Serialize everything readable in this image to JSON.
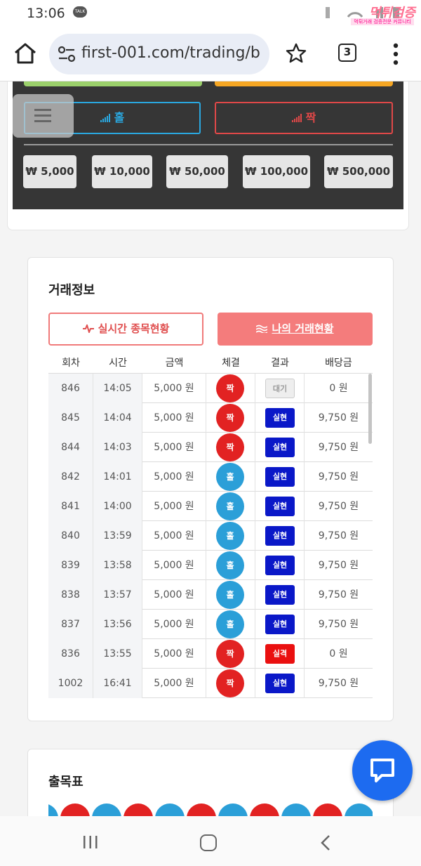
{
  "status_bar": {
    "time": "13:06",
    "talk_badge": "TALK",
    "watermark": "먹튀검증",
    "watermark_sub": "먹튀거래 검증전문 커뮤니티"
  },
  "browser": {
    "url": "first-001.com/trading/b",
    "tab_count": "3"
  },
  "bet_panel": {
    "odd_label": "홀",
    "even_label": "짝",
    "amounts": [
      "₩ 5,000",
      "₩ 10,000",
      "₩ 50,000",
      "₩ 100,000",
      "₩ 500,000"
    ]
  },
  "trade_info": {
    "title": "거래정보",
    "tab_live": "실시간 종목현황",
    "tab_mine": "나의 거래현황",
    "columns": [
      "회차",
      "시간",
      "금액",
      "체결",
      "결과",
      "배당금"
    ],
    "rows": [
      {
        "round": "846",
        "time": "14:05",
        "amount": "5,000 원",
        "pick": "짝",
        "result": "대기",
        "payout": "0 원"
      },
      {
        "round": "845",
        "time": "14:04",
        "amount": "5,000 원",
        "pick": "짝",
        "result": "실현",
        "payout": "9,750 원"
      },
      {
        "round": "844",
        "time": "14:03",
        "amount": "5,000 원",
        "pick": "짝",
        "result": "실현",
        "payout": "9,750 원"
      },
      {
        "round": "842",
        "time": "14:01",
        "amount": "5,000 원",
        "pick": "홀",
        "result": "실현",
        "payout": "9,750 원"
      },
      {
        "round": "841",
        "time": "14:00",
        "amount": "5,000 원",
        "pick": "홀",
        "result": "실현",
        "payout": "9,750 원"
      },
      {
        "round": "840",
        "time": "13:59",
        "amount": "5,000 원",
        "pick": "홀",
        "result": "실현",
        "payout": "9,750 원"
      },
      {
        "round": "839",
        "time": "13:58",
        "amount": "5,000 원",
        "pick": "홀",
        "result": "실현",
        "payout": "9,750 원"
      },
      {
        "round": "838",
        "time": "13:57",
        "amount": "5,000 원",
        "pick": "홀",
        "result": "실현",
        "payout": "9,750 원"
      },
      {
        "round": "837",
        "time": "13:56",
        "amount": "5,000 원",
        "pick": "홀",
        "result": "실현",
        "payout": "9,750 원"
      },
      {
        "round": "836",
        "time": "13:55",
        "amount": "5,000 원",
        "pick": "짝",
        "result": "실격",
        "payout": "0 원"
      },
      {
        "round": "1002",
        "time": "16:41",
        "amount": "5,000 원",
        "pick": "짝",
        "result": "실현",
        "payout": "9,750 원"
      }
    ]
  },
  "chart_section": {
    "title": "출목표",
    "dot_colors": [
      "blue",
      "red",
      "blue",
      "red",
      "blue",
      "red",
      "blue",
      "red",
      "blue",
      "red",
      "blue"
    ]
  },
  "colors": {
    "odd": "#2b9fd8",
    "even": "#e22222",
    "win_badge": "#0a18c8",
    "lose_badge": "#ea1010",
    "accent_tab": "#f47c7c",
    "fab": "#1d6bf0"
  }
}
